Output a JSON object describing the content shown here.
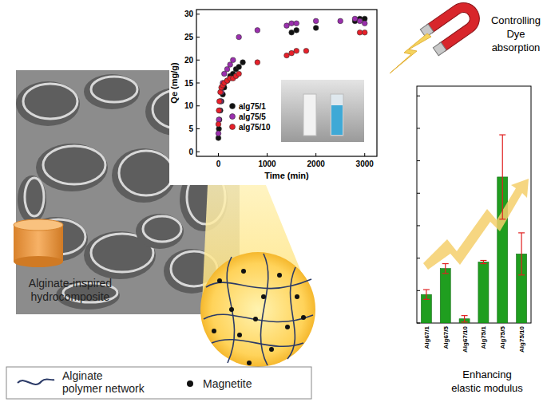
{
  "chart_data": [
    {
      "type": "scatter",
      "x_label": "Time (min)",
      "y_label": "Qe (mg/g)",
      "xlim": [
        -450,
        3250
      ],
      "ylim": [
        -1,
        31
      ],
      "xticks": [
        0,
        1000,
        2000,
        3000
      ],
      "yticks": [
        0,
        5,
        10,
        15,
        20,
        25,
        30
      ],
      "legend": "left",
      "grid": false,
      "series": [
        {
          "name": "alg75/1",
          "color": "#111111",
          "marker": "circle",
          "x": [
            0,
            10,
            20,
            40,
            60,
            90,
            120,
            180,
            240,
            300,
            360,
            420,
            500,
            1500,
            1600,
            2000,
            2800,
            2900,
            3000
          ],
          "values": [
            3,
            5,
            7,
            9,
            11,
            12.5,
            14,
            15.5,
            16.5,
            17,
            18,
            18.5,
            19.5,
            26,
            26.5,
            27,
            28.5,
            29,
            29
          ]
        },
        {
          "name": "alg75/5",
          "color": "#9b2fae",
          "marker": "circle",
          "x": [
            0,
            10,
            20,
            40,
            60,
            90,
            120,
            180,
            240,
            300,
            420,
            800,
            1400,
            1500,
            1600,
            2000,
            2500,
            2800,
            2900,
            3000
          ],
          "values": [
            4,
            7,
            9,
            11,
            13,
            15,
            17,
            18,
            19,
            20,
            25,
            26.5,
            27.5,
            28,
            28,
            28.5,
            28.5,
            29,
            28.5,
            28
          ]
        },
        {
          "name": "alg75/10",
          "color": "#e8202a",
          "marker": "circle",
          "x": [
            0,
            10,
            20,
            40,
            60,
            90,
            120,
            180,
            240,
            300,
            360,
            420,
            800,
            1400,
            1500,
            1600,
            1800,
            2900,
            3000
          ],
          "values": [
            6,
            9,
            11,
            13,
            14,
            14.5,
            15,
            15.5,
            16,
            16,
            16.5,
            17,
            19.5,
            21,
            21.5,
            22,
            22,
            26,
            26
          ]
        }
      ]
    },
    {
      "type": "bar",
      "categories": [
        "Alg67/1",
        "Alg67/5",
        "Alg67/10",
        "Alg75/1",
        "Alg75/5",
        "Alg75/10"
      ],
      "values": [
        0.88,
        1.68,
        0.13,
        1.88,
        4.5,
        2.13
      ],
      "errors": [
        0.15,
        0.15,
        0.1,
        0.05,
        1.3,
        0.65
      ],
      "color": "#1f9e1f",
      "ylim": [
        0,
        7.3
      ],
      "yticks": [
        0,
        1,
        2,
        3,
        4,
        5,
        6,
        7
      ],
      "tick_labels": "x",
      "grid": false
    }
  ],
  "diagram": {
    "sample_label": [
      "Alginate-inspired",
      "hydrocomposite"
    ],
    "magnet_label": [
      "Controlling",
      "Dye",
      "absorption"
    ],
    "bar_caption": [
      "Enhancing",
      "elastic modulus"
    ],
    "legend": [
      {
        "label": [
          "Alginate",
          "polymer network"
        ]
      },
      {
        "label": "Magnetite"
      }
    ]
  }
}
